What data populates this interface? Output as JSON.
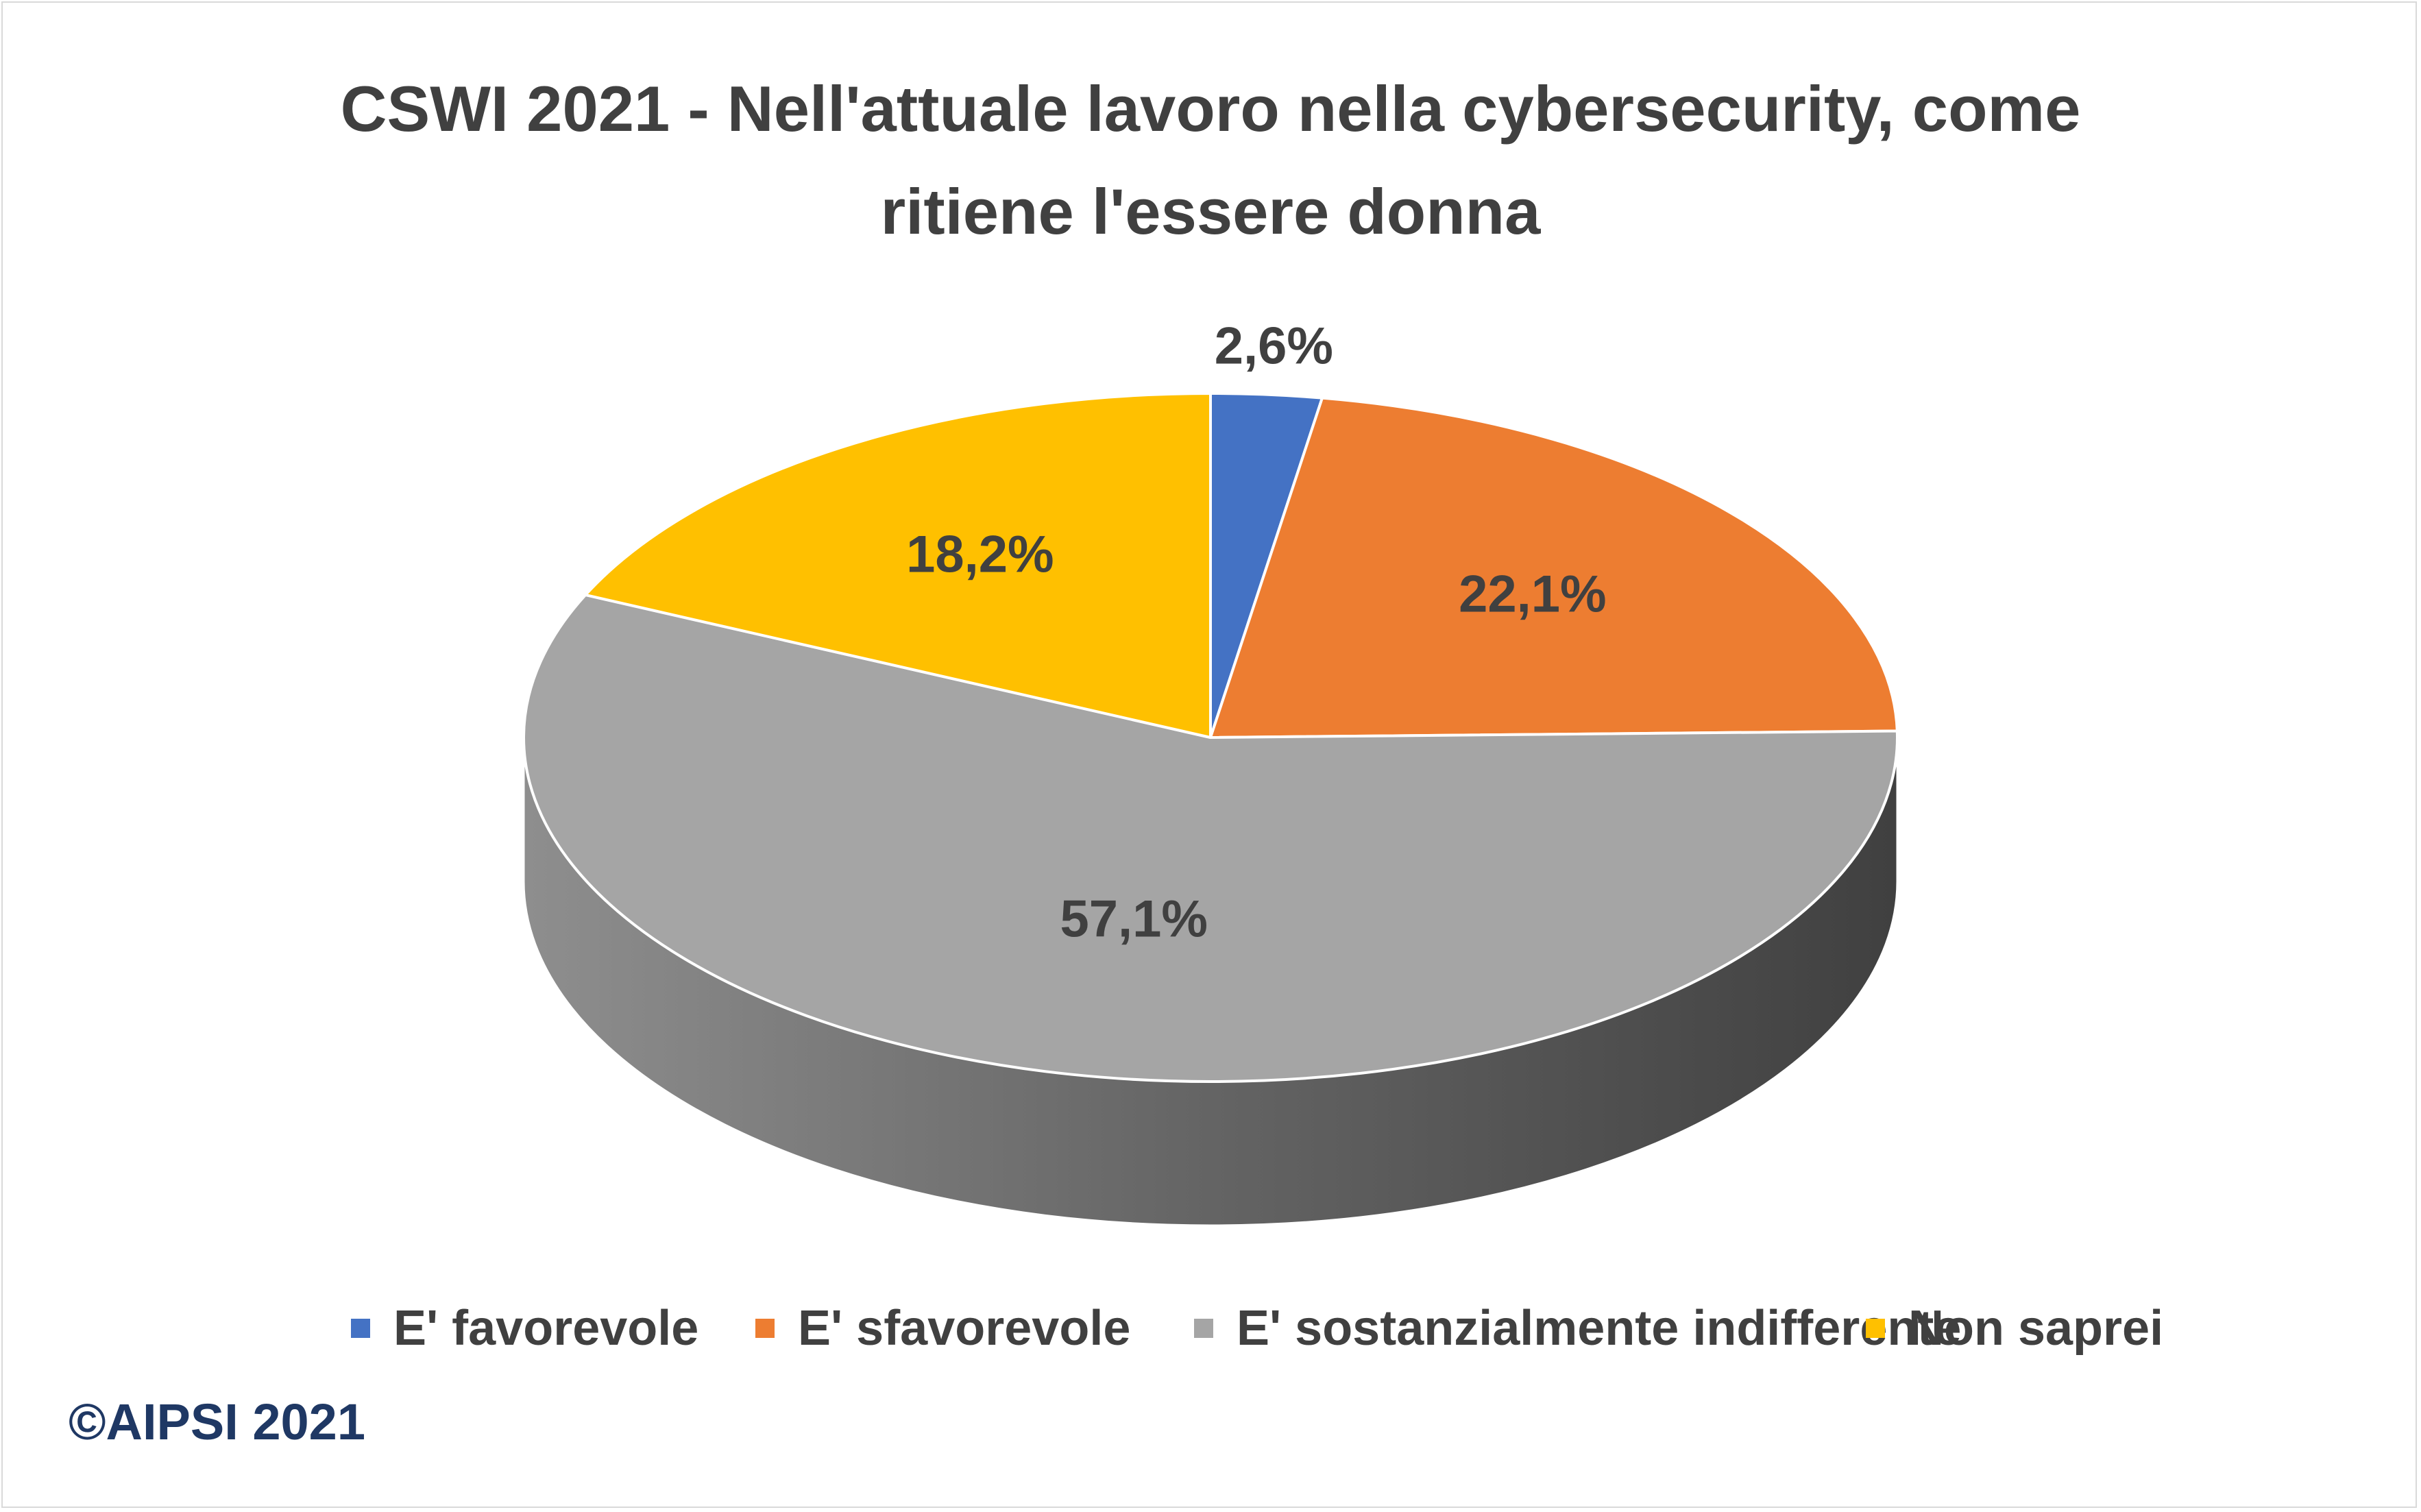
{
  "title": "CSWI 2021 - Nell'attuale lavoro nella cybersecurity, come ritiene l'essere donna",
  "copyright": "©AIPSI 2021",
  "chart_data": {
    "type": "pie",
    "three_d": true,
    "title": "CSWI 2021 - Nell'attuale lavoro nella cybersecurity, come ritiene l'essere donna",
    "categories": [
      "E' favorevole",
      "E' sfavorevole",
      "E' sostanzialmente indifferente",
      "Non saprei"
    ],
    "values": [
      2.6,
      22.1,
      57.1,
      18.2
    ],
    "labels": [
      "2,6%",
      "22,1%",
      "57,1%",
      "18,2%"
    ],
    "colors": [
      "#4472c4",
      "#ed7d31",
      "#a5a5a5",
      "#ffc000"
    ],
    "legend_position": "bottom"
  }
}
